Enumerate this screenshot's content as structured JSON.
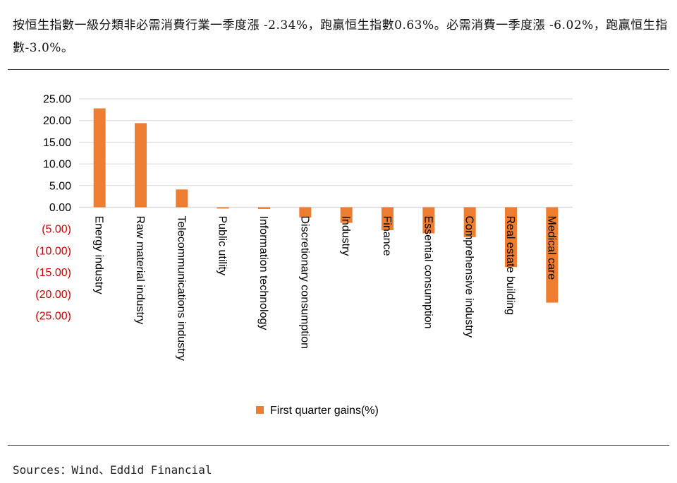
{
  "intro_text": "按恒生指數一級分類非必需消費行業一季度漲 -2.34%，跑贏恒生指數0.63%。必需消費一季度漲 -6.02%，跑贏恒生指數-3.0%。",
  "source_text": "Sources：Wind、Eddid Financial",
  "colors": {
    "bar": "#ED7D31",
    "negative_tick": "#CC0000",
    "positive_tick": "#000000",
    "grid": "#D9D9D9"
  },
  "chart_data": {
    "type": "bar",
    "categories": [
      "Energy industry",
      "Raw material industry",
      "Telecommunications industry",
      "Public utility",
      "Information technology",
      "Discretionary consumption",
      "Industry",
      "Finance",
      "Essential consumption",
      "Comprehensive industry",
      "Real estate building",
      "Medical care"
    ],
    "series": [
      {
        "name": "First quarter gains(%)",
        "values": [
          22.8,
          19.4,
          4.1,
          -0.3,
          -0.4,
          -2.34,
          -3.6,
          -5.3,
          -6.02,
          -6.9,
          -13.8,
          -22.0
        ]
      }
    ],
    "yticks": [
      "25.00",
      "20.00",
      "15.00",
      "10.00",
      "5.00",
      "0.00",
      "(5.00)",
      "(10.00)",
      "(15.00)",
      "(20.00)",
      "(25.00)"
    ],
    "ylim": [
      -25,
      25
    ],
    "grid": true,
    "legend_position": "bottom"
  }
}
